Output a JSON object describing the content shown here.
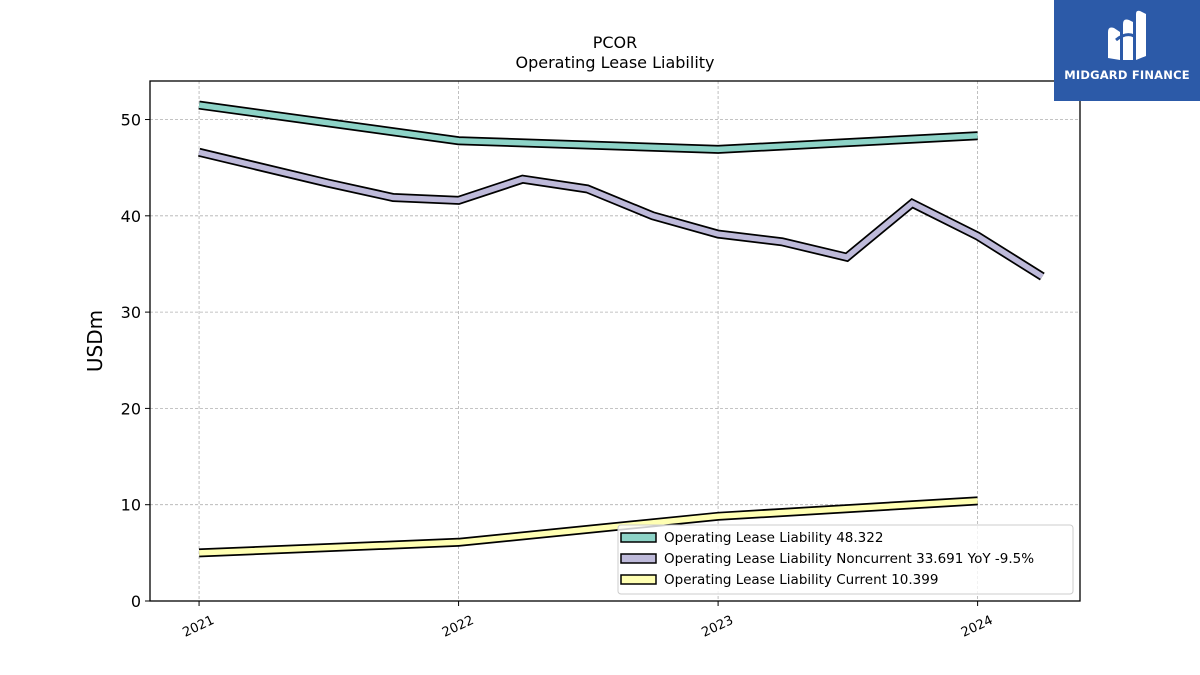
{
  "logo": {
    "text": "MIDGARD FINANCE",
    "bg_color": "#2c5aa8"
  },
  "chart_data": {
    "type": "line",
    "title": "PCOR",
    "subtitle": "Operating Lease Liability",
    "xlabel": "",
    "ylabel": "USDm",
    "ylim": [
      0,
      54
    ],
    "xlim": [
      "2020-10-24",
      "2024-05-24"
    ],
    "yticks": [
      0,
      10,
      20,
      30,
      40,
      50
    ],
    "xticks": [
      "2021",
      "2022",
      "2023",
      "2024"
    ],
    "grid": true,
    "legend_position": "lower-right",
    "series": [
      {
        "name": "Operating Lease Liability",
        "legend_label": "Operating Lease Liability  48.322",
        "color": "#8dd3c7",
        "points": [
          [
            "2021-01-01",
            51.5
          ],
          [
            "2022-01-01",
            47.8
          ],
          [
            "2023-01-01",
            46.9
          ],
          [
            "2024-01-01",
            48.322
          ]
        ]
      },
      {
        "name": "Operating Lease Liability Noncurrent",
        "legend_label": "Operating Lease Liability Noncurrent  33.691 YoY -9.5%",
        "color": "#bebada",
        "points": [
          [
            "2021-01-01",
            46.6
          ],
          [
            "2021-07-01",
            43.4
          ],
          [
            "2021-10-01",
            41.9
          ],
          [
            "2022-01-01",
            41.6
          ],
          [
            "2022-04-01",
            43.8
          ],
          [
            "2022-07-01",
            42.8
          ],
          [
            "2022-10-01",
            40.0
          ],
          [
            "2023-01-01",
            38.1
          ],
          [
            "2023-04-01",
            37.3
          ],
          [
            "2023-07-01",
            35.7
          ],
          [
            "2023-10-01",
            41.3
          ],
          [
            "2024-01-01",
            37.9
          ],
          [
            "2024-04-01",
            33.691
          ]
        ]
      },
      {
        "name": "Operating Lease Liability Current",
        "legend_label": "Operating Lease Liability Current  10.399",
        "color": "#ffffb3",
        "points": [
          [
            "2021-01-01",
            5.0
          ],
          [
            "2022-01-01",
            6.1
          ],
          [
            "2023-01-01",
            8.8
          ],
          [
            "2024-01-01",
            10.399
          ]
        ]
      }
    ]
  }
}
